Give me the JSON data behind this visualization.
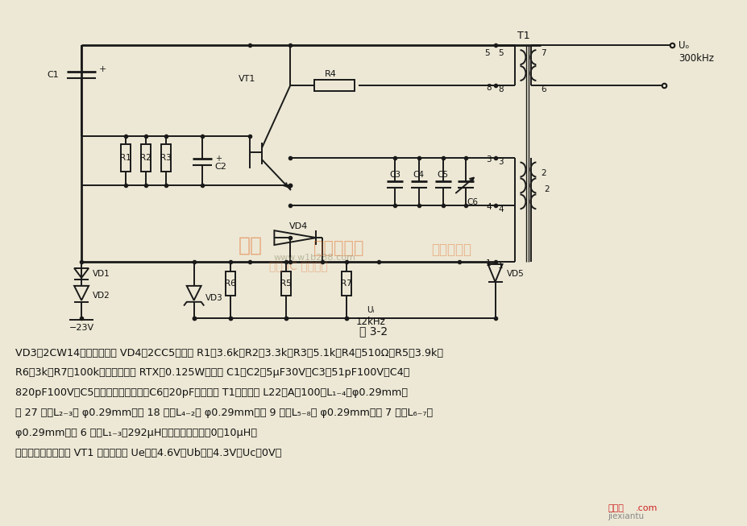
{
  "page_bg": "#ede8d5",
  "fig_caption": "图 3-2",
  "description_lines": [
    "VD3：2CW14。变容二极管 VD4：2CC5。电阵 R1：3.6k，R2：3.3k，R3：5.1k，R4：510Ω，R5：3.9k，",
    "R6：3k，R7：100k，其型号均为 RTX－0.125W。电容 C1、C2：5μF30V，C3：51pF100V，C4：",
    "820pF100V，C5：（调测时选配），C6：20pF。变量器 T1：型号为 L22，A＝100。L₁₋₄：φ0.29mm，",
    "绕 27 匹，L₂₋₃： φ0.29mm，绕 18 匹，L₄₋₂： φ0.29mm，绕 9 匹，L₅₋₈： φ0.29mm，绕 7 匹，L₆₋₇：",
    "φ0.29mm，绕 6 匹。L₁₋₃＝292μH，允许误差范围：0～10μH。"
  ],
  "last_line": "　工作正常时，测得 VT1 直流电压为 Ue＝－4.6V，Ub＝－4.3V，Uc＝0V。",
  "text_color": "#111111",
  "line_color": "#1a1a1a",
  "watermark_color": "#e07030"
}
